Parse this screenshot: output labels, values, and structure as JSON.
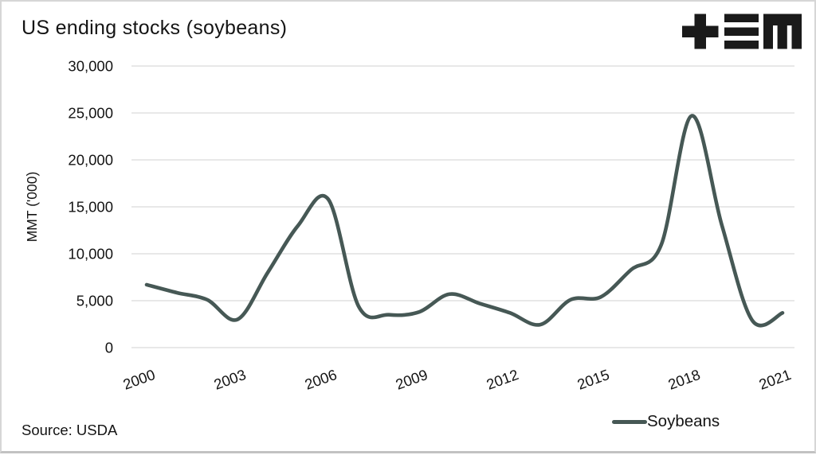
{
  "header": {
    "title": "US ending stocks (soybeans)",
    "logo_name": "tem-logo"
  },
  "chart_data": {
    "type": "line",
    "title": "US ending stocks (soybeans)",
    "xlabel": "",
    "ylabel": "MMT ('000)",
    "x": [
      2000,
      2001,
      2002,
      2003,
      2004,
      2005,
      2006,
      2007,
      2008,
      2009,
      2010,
      2011,
      2012,
      2013,
      2014,
      2015,
      2016,
      2017,
      2018,
      2019,
      2020,
      2021
    ],
    "series": [
      {
        "name": "Soybeans",
        "color": "#465855",
        "values": [
          6700,
          5850,
          5100,
          3000,
          8000,
          13000,
          15800,
          4400,
          3500,
          3800,
          5700,
          4700,
          3700,
          2450,
          5100,
          5400,
          8300,
          11000,
          24700,
          13000,
          2900,
          3700
        ]
      }
    ],
    "ylim": [
      0,
      30000
    ],
    "y_ticks": [
      0,
      5000,
      10000,
      15000,
      20000,
      25000,
      30000
    ],
    "y_tick_labels": [
      "0",
      "5,000",
      "10,000",
      "15,000",
      "20,000",
      "25,000",
      "30,000"
    ],
    "x_tick_labels": [
      "2000",
      "2003",
      "2006",
      "2009",
      "2012",
      "2015",
      "2018",
      "2021"
    ],
    "grid": "horizontal",
    "gridline_color": "#dbdbdb",
    "legend_position": "bottom-right"
  },
  "footer": {
    "source_label": "Source: USDA"
  }
}
